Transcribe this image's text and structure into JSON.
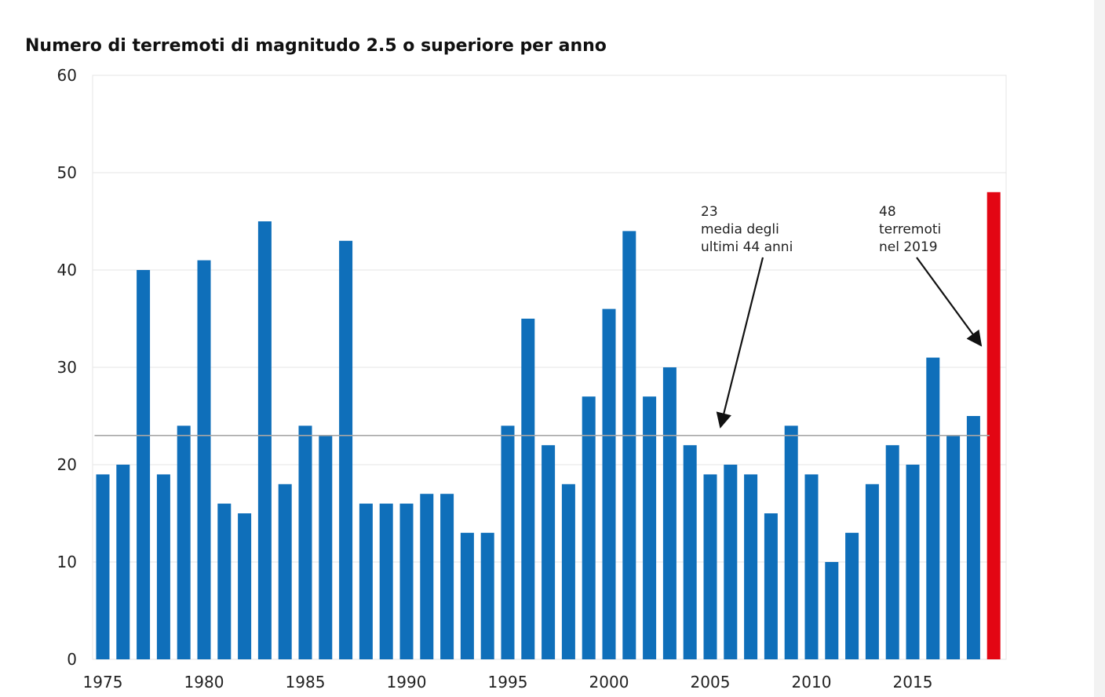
{
  "chart_data": {
    "type": "bar",
    "title": "Numero di terremoti di magnitudo 2.5 o superiore per anno",
    "xlabel": "",
    "ylabel": "",
    "ylim": [
      0,
      60
    ],
    "yticks": [
      "0",
      "10",
      "20",
      "30",
      "40",
      "50",
      "60"
    ],
    "xticks": [
      "1975",
      "1980",
      "1985",
      "1990",
      "1995",
      "2000",
      "2005",
      "2010",
      "2015"
    ],
    "categories": [
      1975,
      1976,
      1977,
      1978,
      1979,
      1980,
      1981,
      1982,
      1983,
      1984,
      1985,
      1986,
      1987,
      1988,
      1989,
      1990,
      1991,
      1992,
      1993,
      1994,
      1995,
      1996,
      1997,
      1998,
      1999,
      2000,
      2001,
      2002,
      2003,
      2004,
      2005,
      2006,
      2007,
      2008,
      2009,
      2010,
      2011,
      2012,
      2013,
      2014,
      2015,
      2016,
      2017,
      2018,
      2019
    ],
    "values": [
      19,
      20,
      40,
      19,
      24,
      41,
      16,
      15,
      45,
      18,
      24,
      23,
      43,
      16,
      16,
      16,
      17,
      17,
      13,
      13,
      24,
      35,
      22,
      18,
      27,
      36,
      44,
      27,
      30,
      22,
      19,
      20,
      19,
      15,
      24,
      19,
      10,
      13,
      18,
      22,
      20,
      31,
      23,
      25,
      48
    ],
    "bar_color": "#0f6fba",
    "highlight": {
      "category": 2019,
      "color": "#e30613"
    },
    "average": {
      "value": 23,
      "color": "#a6a6a6"
    },
    "grid": true,
    "annotations": [
      {
        "lines": [
          "23",
          "media degli",
          "ultimi 44 anni"
        ]
      },
      {
        "lines": [
          "48",
          "terremoti",
          "nel 2019"
        ]
      }
    ]
  }
}
